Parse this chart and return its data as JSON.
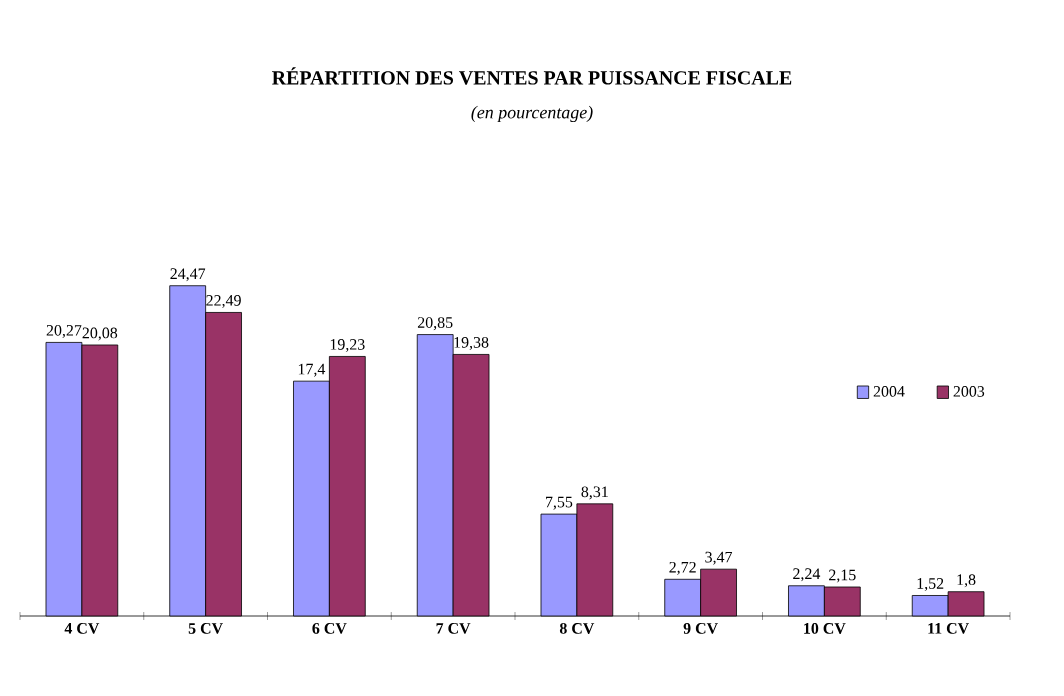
{
  "chart_data": {
    "type": "bar",
    "title": "RÉPARTITION DES VENTES PAR PUISSANCE FISCALE",
    "subtitle": "(en pourcentage)",
    "categories": [
      "4 CV",
      "5 CV",
      "6 CV",
      "7 CV",
      "8 CV",
      "9 CV",
      "10 CV",
      "11 CV"
    ],
    "series": [
      {
        "name": "2004",
        "color": "#9999ff",
        "values": [
          20.27,
          24.47,
          17.4,
          20.85,
          7.55,
          2.72,
          2.24,
          1.52
        ],
        "value_labels": [
          "20,27",
          "24,47",
          "17,4",
          "20,85",
          "7,55",
          "2,72",
          "2,24",
          "1,52"
        ]
      },
      {
        "name": "2003",
        "color": "#993366",
        "values": [
          20.08,
          22.49,
          19.23,
          19.38,
          8.31,
          3.47,
          2.15,
          1.8
        ],
        "value_labels": [
          "20,08",
          "22,49",
          "19,23",
          "19,38",
          "8,31",
          "3,47",
          "2,15",
          "1,8"
        ]
      }
    ],
    "legend": "right"
  }
}
